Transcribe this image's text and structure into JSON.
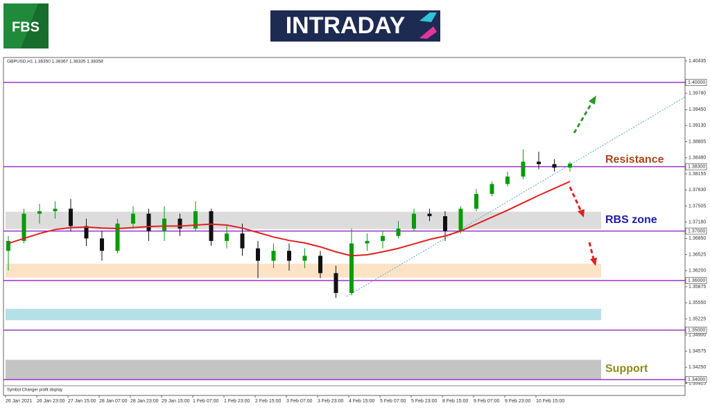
{
  "header": {
    "logo": "FBS",
    "brand": "INTRADAY"
  },
  "chart_data": {
    "type": "candlestick",
    "title": "GBPUSD,H1  1.38350 1.38367 1.38335 1.38358",
    "footer": "Symbol Changer profit display",
    "categories": [
      "26 Jan 2021",
      null,
      "26 Jan 23:00",
      null,
      "27 Jan 15:00",
      null,
      "28 Jan 07:00",
      null,
      "28 Jan 23:00",
      null,
      "29 Jan 15:00",
      null,
      "1 Feb 07:00",
      null,
      "1 Feb 23:00",
      null,
      "2 Feb 15:00",
      null,
      "3 Feb 07:00",
      null,
      "3 Feb 23:00",
      null,
      "4 Feb 15:00",
      null,
      "5 Feb 07:00",
      null,
      "5 Feb 23:00",
      null,
      "8 Feb 15:00",
      null,
      "9 Feb 07:00",
      null,
      "9 Feb 23:00",
      null,
      "10 Feb 15:00",
      null,
      null
    ],
    "open": [
      1.366,
      1.368,
      1.3735,
      1.374,
      1.3745,
      1.371,
      1.3685,
      1.366,
      1.3715,
      1.3735,
      1.37,
      1.3725,
      1.3705,
      1.374,
      1.368,
      1.3695,
      1.3665,
      1.364,
      1.366,
      1.364,
      1.365,
      1.3615,
      1.3575,
      1.3675,
      1.368,
      1.369,
      1.3705,
      1.3735,
      1.373,
      1.37,
      1.3745,
      1.3775,
      1.3795,
      1.381,
      1.384,
      1.3835,
      1.3828
    ],
    "high": [
      1.369,
      1.3745,
      1.3755,
      1.376,
      1.3765,
      1.3725,
      1.37,
      1.3725,
      1.375,
      1.3745,
      1.375,
      1.3735,
      1.376,
      1.3745,
      1.371,
      1.3715,
      1.368,
      1.3675,
      1.3675,
      1.3665,
      1.366,
      1.363,
      1.3705,
      1.3695,
      1.37,
      1.372,
      1.3745,
      1.3745,
      1.374,
      1.375,
      1.3785,
      1.38,
      1.382,
      1.3865,
      1.386,
      1.3845,
      1.384
    ],
    "low": [
      1.362,
      1.3675,
      1.3715,
      1.3725,
      1.37,
      1.367,
      1.364,
      1.3655,
      1.3705,
      1.368,
      1.368,
      1.369,
      1.37,
      1.367,
      1.3665,
      1.365,
      1.3605,
      1.3625,
      1.362,
      1.3625,
      1.3605,
      1.3565,
      1.357,
      1.366,
      1.3665,
      1.3685,
      1.37,
      1.372,
      1.368,
      1.3695,
      1.374,
      1.377,
      1.379,
      1.3805,
      1.3825,
      1.382,
      1.382
    ],
    "close": [
      1.368,
      1.3735,
      1.374,
      1.3745,
      1.371,
      1.3685,
      1.366,
      1.3715,
      1.3735,
      1.37,
      1.3725,
      1.3705,
      1.374,
      1.368,
      1.3695,
      1.3665,
      1.364,
      1.366,
      1.364,
      1.365,
      1.3615,
      1.3575,
      1.3675,
      1.368,
      1.369,
      1.3705,
      1.3735,
      1.373,
      1.37,
      1.3745,
      1.3775,
      1.3795,
      1.381,
      1.384,
      1.3835,
      1.3828,
      1.3836
    ],
    "up_color": "#0a9a0a",
    "down_color": "#111111",
    "series": [
      {
        "color": "#e02020",
        "values": [
          1.3675,
          1.3685,
          1.3695,
          1.3703,
          1.3707,
          1.3708,
          1.3706,
          1.3705,
          1.3707,
          1.3709,
          1.371,
          1.371,
          1.3712,
          1.3714,
          1.3712,
          1.3706,
          1.3697,
          1.3688,
          1.3681,
          1.3676,
          1.3668,
          1.3658,
          1.365,
          1.3652,
          1.3658,
          1.3665,
          1.3674,
          1.3683,
          1.369,
          1.37,
          1.3714,
          1.3728,
          1.3742,
          1.3757,
          1.3772,
          1.3786,
          1.38
        ]
      }
    ],
    "ylim": [
      1.3389,
      1.4049
    ],
    "yticks": [
      {
        "value": 1.40435,
        "label": "1.40435"
      },
      {
        "value": 1.3978,
        "label": "1.39780"
      },
      {
        "value": 1.3945,
        "label": "1.39450"
      },
      {
        "value": 1.3913,
        "label": "1.39130"
      },
      {
        "value": 1.38805,
        "label": "1.38805"
      },
      {
        "value": 1.3848,
        "label": "1.38480"
      },
      {
        "value": 1.38155,
        "label": "1.38155"
      },
      {
        "value": 1.3783,
        "label": "1.37830"
      },
      {
        "value": 1.37505,
        "label": "1.37505"
      },
      {
        "value": 1.3718,
        "label": "1.37180"
      },
      {
        "value": 1.3685,
        "label": "1.36850"
      },
      {
        "value": 1.36525,
        "label": "1.36525"
      },
      {
        "value": 1.362,
        "label": "1.36200"
      },
      {
        "value": 1.35875,
        "label": "1.35875"
      },
      {
        "value": 1.3555,
        "label": "1.35550"
      },
      {
        "value": 1.35225,
        "label": "1.35225"
      },
      {
        "value": 1.349,
        "label": "1.34900"
      },
      {
        "value": 1.34575,
        "label": "1.34575"
      },
      {
        "value": 1.3425,
        "label": "1.34250"
      },
      {
        "value": 1.33925,
        "label": "1.33925"
      }
    ],
    "levels": [
      {
        "value": 1.4,
        "label": "1.40000"
      },
      {
        "value": 1.383,
        "label": "1.38300"
      },
      {
        "value": 1.37,
        "label": "1.37000"
      },
      {
        "value": 1.36,
        "label": "1.36000"
      },
      {
        "value": 1.35,
        "label": "1.35000"
      },
      {
        "value": 1.34,
        "label": "1.34000"
      }
    ],
    "level_color": "#9b30c8",
    "zones": [
      {
        "range": [
          1.3704,
          1.3739
        ],
        "color": "#dcdcdc"
      },
      {
        "range": [
          1.3606,
          1.3634
        ],
        "color": "#fde3c6"
      },
      {
        "range": [
          1.352,
          1.3543
        ],
        "color": "#b4e0e6"
      },
      {
        "range": [
          1.3401,
          1.344
        ],
        "color": "#c4c4c4"
      }
    ],
    "annotations": [
      {
        "text": "Resistance",
        "color": "#a8461c"
      },
      {
        "text": "RBS zone",
        "color": "#1c1ca8"
      },
      {
        "text": "Support",
        "color": "#8c8c1c"
      }
    ]
  }
}
